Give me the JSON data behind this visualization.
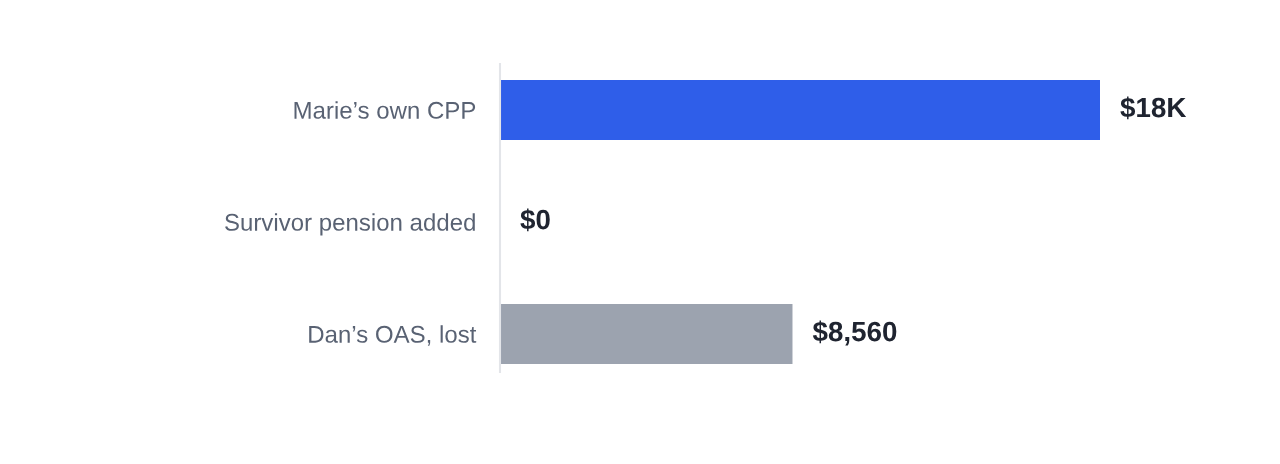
{
  "chart_data": {
    "type": "bar",
    "orientation": "horizontal",
    "categories": [
      "Marie’s own CPP",
      "Survivor pension added",
      "Dan’s OAS, lost"
    ],
    "values": [
      17560,
      0,
      8560
    ],
    "colors": [
      "#2f5ee9",
      "#9ca3af",
      "#9ca3af"
    ],
    "value_labels": [
      "$18K",
      "$0",
      "$8,560"
    ],
    "tick_labels": "y"
  }
}
